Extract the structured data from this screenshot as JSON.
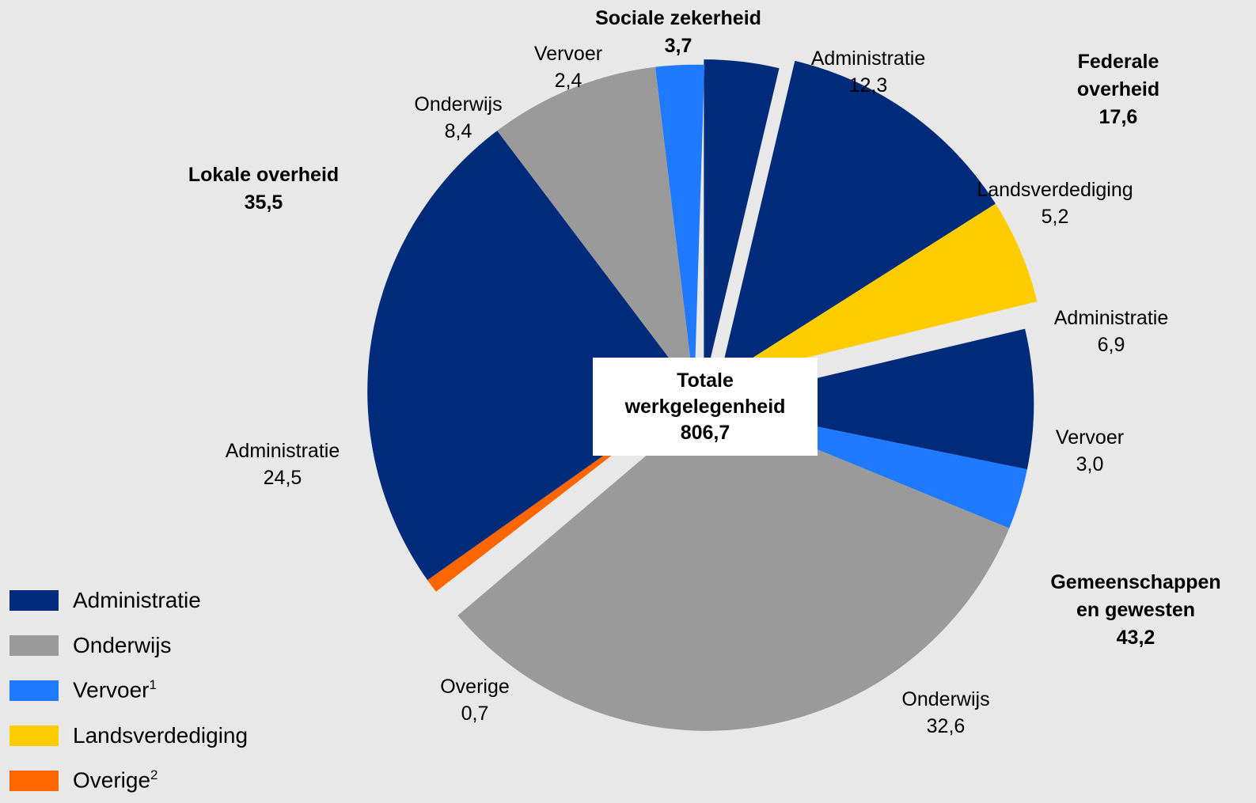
{
  "chart_data": {
    "type": "pie",
    "center_label": [
      "Totale",
      "werkgelegenheid",
      "806,7"
    ],
    "total": 806.7,
    "groups": [
      {
        "name_lines": [
          "Sociale zekerheid",
          "3,7"
        ],
        "value": 3.7,
        "slices": [
          {
            "category": "Administratie",
            "label": "",
            "value": 3.7
          }
        ]
      },
      {
        "name_lines": [
          "Federale",
          "overheid",
          "17,6"
        ],
        "value": 17.6,
        "slices": [
          {
            "category": "Administratie",
            "label": "Administratie",
            "display_value": "12,3",
            "value": 12.3
          },
          {
            "category": "Landsverdediging",
            "label": "Landsverdediging",
            "display_value": "5,2",
            "value": 5.2
          }
        ]
      },
      {
        "name_lines": [
          "Gemeenschappen",
          "en gewesten",
          "43,2"
        ],
        "value": 43.2,
        "slices": [
          {
            "category": "Administratie",
            "label": "Administratie",
            "display_value": "6,9",
            "value": 6.9
          },
          {
            "category": "Vervoer",
            "label": "Vervoer",
            "display_value": "3,0",
            "value": 3.0
          },
          {
            "category": "Onderwijs",
            "label": "Onderwijs",
            "display_value": "32,6",
            "value": 32.6
          }
        ]
      },
      {
        "name_lines": [
          "Lokale overheid",
          "35,5"
        ],
        "value": 35.5,
        "slices": [
          {
            "category": "Overige",
            "label": "Overige",
            "display_value": "0,7",
            "value": 0.7
          },
          {
            "category": "Administratie",
            "label": "Administratie",
            "display_value": "24,5",
            "value": 24.5
          },
          {
            "category": "Onderwijs",
            "label": "Onderwijs",
            "display_value": "8,4",
            "value": 8.4
          },
          {
            "category": "Vervoer",
            "label": "Vervoer",
            "display_value": "2,4",
            "value": 2.4
          }
        ]
      }
    ],
    "legend": [
      {
        "label": "Administratie",
        "sup": "",
        "color": "#002b7a"
      },
      {
        "label": "Onderwijs",
        "sup": "",
        "color": "#9a9a9a"
      },
      {
        "label": "Vervoer",
        "sup": "1",
        "color": "#1f7aff"
      },
      {
        "label": "Landsverdediging",
        "sup": "",
        "color": "#ffcc00"
      },
      {
        "label": "Overige",
        "sup": "2",
        "color": "#ff6600"
      }
    ],
    "legend_position": "bottom-left"
  }
}
